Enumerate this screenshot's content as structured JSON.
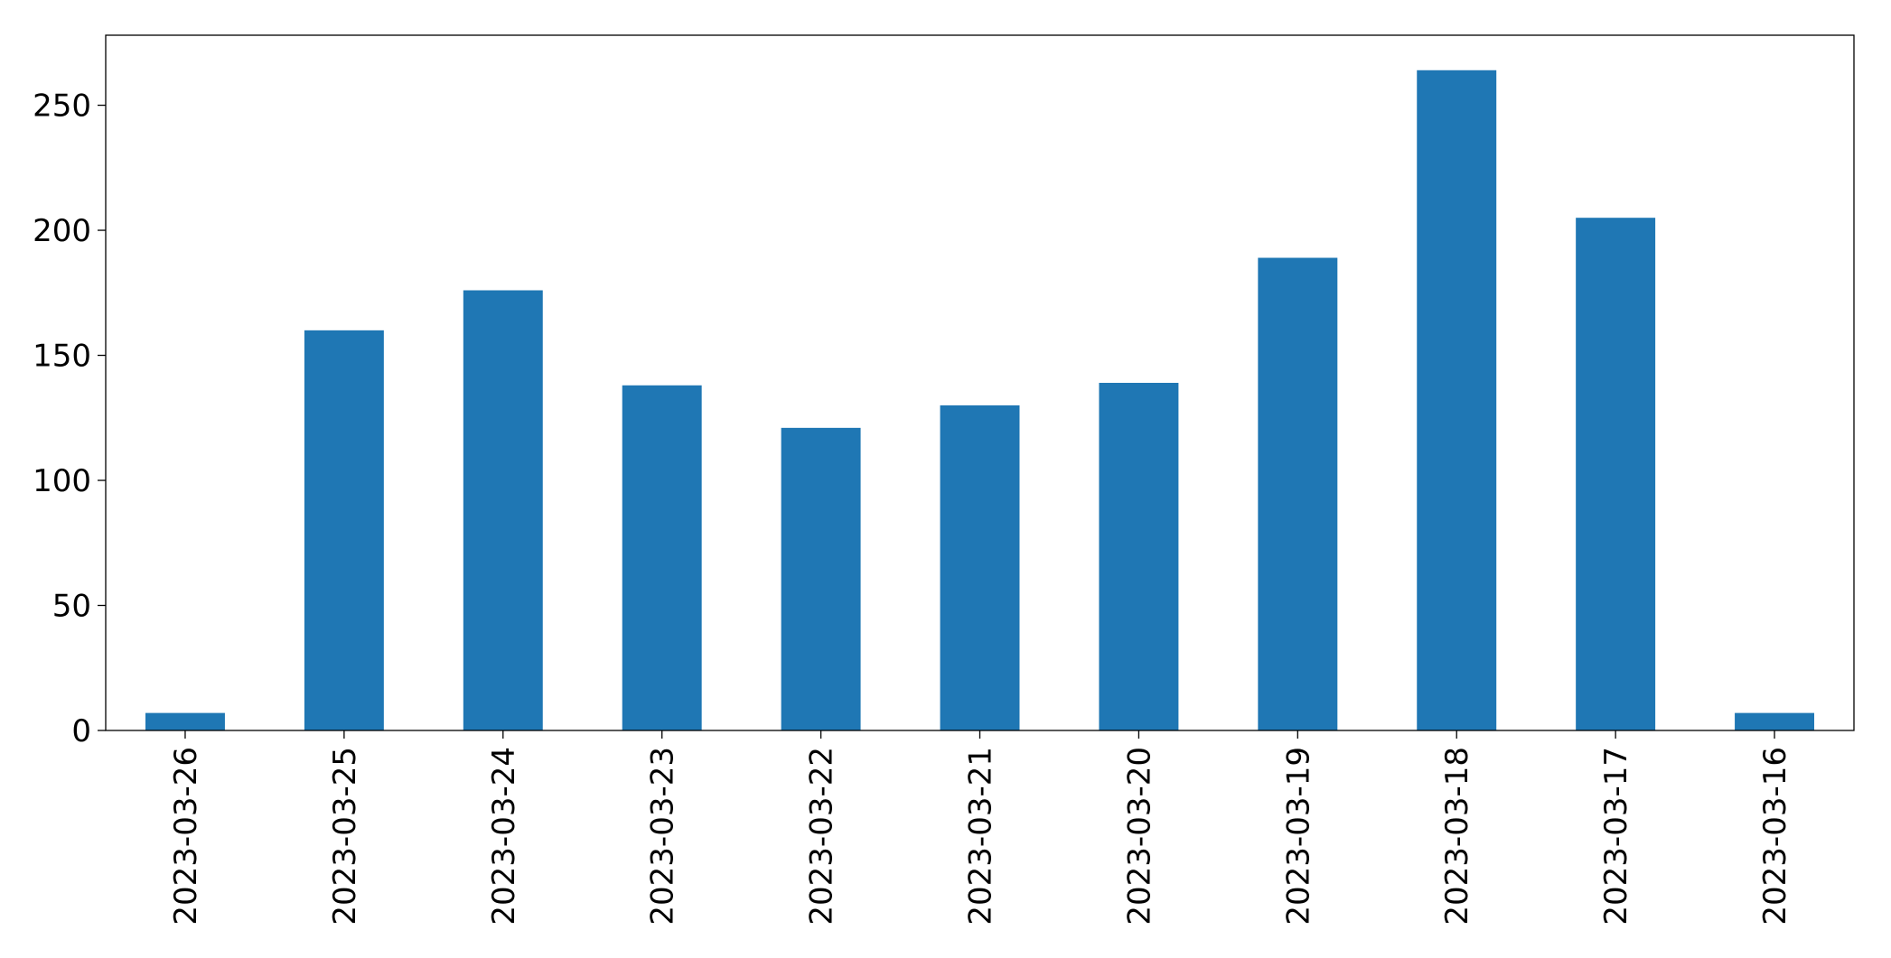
{
  "chart_data": {
    "type": "bar",
    "categories": [
      "2023-03-26",
      "2023-03-25",
      "2023-03-24",
      "2023-03-23",
      "2023-03-22",
      "2023-03-21",
      "2023-03-20",
      "2023-03-19",
      "2023-03-18",
      "2023-03-17",
      "2023-03-16"
    ],
    "values": [
      7,
      160,
      176,
      138,
      121,
      130,
      139,
      189,
      264,
      205,
      7
    ],
    "color": "#1f77b4",
    "ylim": [
      0,
      278
    ],
    "yticks": [
      0,
      50,
      100,
      150,
      200,
      250
    ],
    "grid": false
  }
}
